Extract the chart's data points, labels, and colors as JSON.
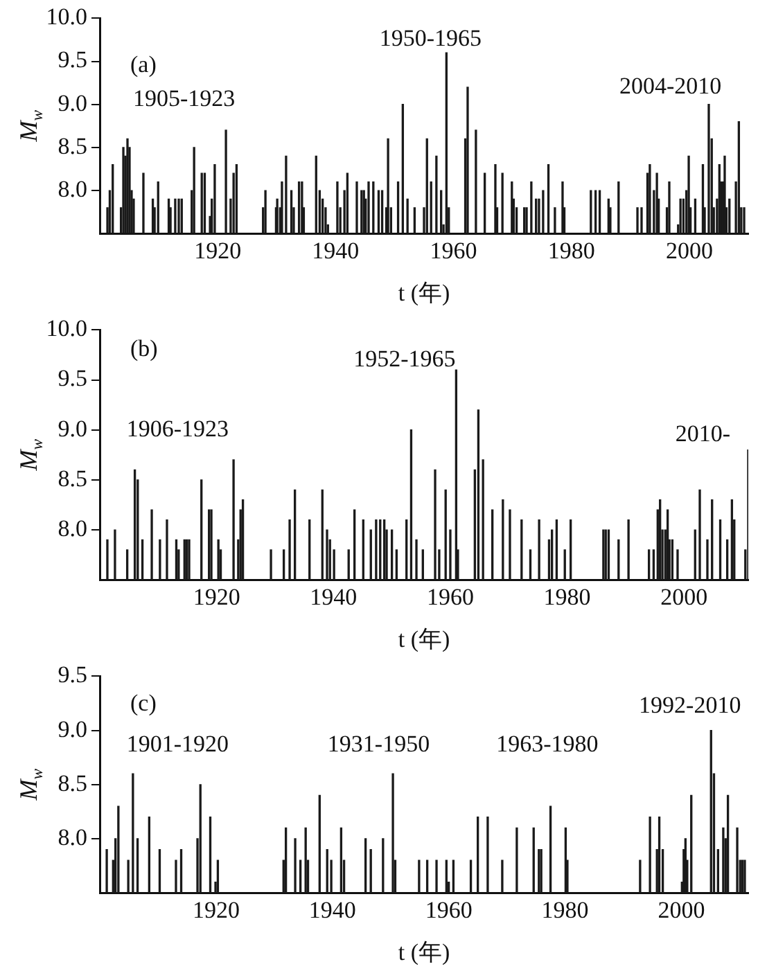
{
  "chart_data": [
    {
      "type": "bar",
      "color": "#1a1a1a",
      "xlabel": "t (年)",
      "ylabel": "M$_{w}$",
      "xlim": [
        1900,
        2010
      ],
      "xticks": [
        1920,
        1940,
        1960,
        1980,
        2000
      ],
      "ylim": [
        7.5,
        10
      ],
      "yticks": [
        {
          "value": 8,
          "label": "8.0"
        },
        {
          "value": 8.5,
          "label": "8.5"
        },
        {
          "value": 9,
          "label": "9.0"
        },
        {
          "value": 9.5,
          "label": "9.5"
        },
        {
          "value": 10,
          "label": "10.0"
        }
      ],
      "annotations": [
        "(a)",
        "1905-1923",
        "1950-1965",
        "2004-2010"
      ],
      "x": [
        1900,
        1901.3,
        1901.7,
        1902.2,
        1903.6,
        1904,
        1904.35,
        1904.7,
        1905.05,
        1905.4,
        1905.75,
        1907.4,
        1909,
        1909.3,
        1909.9,
        1911.7,
        1912,
        1912.8,
        1913.4,
        1913.9,
        1915.6,
        1916,
        1917.3,
        1917.8,
        1918.7,
        1919,
        1919.5,
        1921.4,
        1922.2,
        1922.7,
        1923.2,
        1927.7,
        1928.1,
        1929.9,
        1930.1,
        1930.6,
        1930.9,
        1931.6,
        1932.5,
        1932.9,
        1933.8,
        1934.3,
        1934.6,
        1936.7,
        1937.3,
        1937.8,
        1938.3,
        1938.7,
        1940.3,
        1940.8,
        1941.5,
        1942,
        1943.6,
        1944.4,
        1944.8,
        1945.1,
        1945.6,
        1946.4,
        1947.3,
        1947.9,
        1948.6,
        1948.9,
        1949.4,
        1950.6,
        1951.4,
        1952.2,
        1953.4,
        1955,
        1955.5,
        1956.2,
        1957.1,
        1957.9,
        1958.3,
        1958.8,
        1959.2,
        1962,
        1962.4,
        1963.8,
        1965.3,
        1967.1,
        1967.4,
        1968.3,
        1969.9,
        1970.2,
        1970.7,
        1972,
        1972.4,
        1973.2,
        1974,
        1974.5,
        1975.2,
        1976.1,
        1977.2,
        1978.5,
        1978.8,
        1983.3,
        1984.1,
        1984.8,
        1986.3,
        1986.6,
        1988,
        1991.2,
        1991.9,
        1992.9,
        1993.3,
        1994,
        1994.5,
        1994.8,
        1996.2,
        1996.6,
        1998.1,
        1998.5,
        1999,
        1999.5,
        1999.9,
        2000.2,
        2001,
        2002.3,
        2002.6,
        2003.3,
        2003.8,
        2004.15,
        2004.7,
        2005.1,
        2005.4,
        2005.7,
        2006,
        2006.3,
        2006.8,
        2007.9,
        2008.4,
        2008.8,
        2009.3
      ],
      "values": [
        7.9,
        7.8,
        8,
        8.3,
        7.8,
        8.5,
        8.4,
        8.6,
        8.5,
        8,
        7.9,
        8.2,
        7.9,
        7.8,
        8.1,
        7.9,
        7.8,
        7.9,
        7.9,
        7.9,
        8,
        8.5,
        8.2,
        8.2,
        7.7,
        7.9,
        8.3,
        8.7,
        7.9,
        8.2,
        8.3,
        7.8,
        8,
        7.8,
        7.9,
        7.8,
        8.1,
        8.4,
        8,
        7.8,
        8.1,
        8.1,
        7.8,
        8.4,
        8,
        7.9,
        7.8,
        7.6,
        8.1,
        7.8,
        8,
        8.2,
        8.1,
        8,
        8,
        7.9,
        8.1,
        8.1,
        8,
        8,
        7.8,
        8.6,
        7.8,
        8.1,
        9,
        7.9,
        7.8,
        7.8,
        8.6,
        8.1,
        8.4,
        8,
        7.6,
        9.6,
        7.8,
        8.6,
        9.2,
        8.7,
        8.2,
        8.3,
        7.8,
        8.2,
        8.1,
        7.9,
        7.8,
        7.8,
        7.8,
        8.1,
        7.9,
        7.9,
        8,
        8.3,
        7.8,
        8.1,
        7.8,
        8,
        8,
        8,
        7.9,
        7.8,
        8.1,
        7.8,
        7.8,
        8.2,
        8.3,
        8,
        8.2,
        7.9,
        7.8,
        8.1,
        7.6,
        7.9,
        7.9,
        8,
        8.4,
        7.8,
        7.9,
        8.3,
        7.8,
        9,
        8.6,
        7.8,
        7.9,
        8.3,
        8.1,
        8.1,
        8.4,
        7.8,
        7.9,
        8.1,
        8.8,
        7.8,
        7.8
      ]
    },
    {
      "type": "bar",
      "color": "#1a1a1a",
      "xlabel": "t (年)",
      "ylabel": "M$_{w}$",
      "xlim": [
        1900,
        2011
      ],
      "xticks": [
        1920,
        1940,
        1960,
        1980,
        2000
      ],
      "ylim": [
        7.5,
        10
      ],
      "yticks": [
        {
          "value": 8,
          "label": "8.0"
        },
        {
          "value": 8.5,
          "label": "8.5"
        },
        {
          "value": 9,
          "label": "9.0"
        },
        {
          "value": 9.5,
          "label": "9.5"
        },
        {
          "value": 10,
          "label": "10.0"
        }
      ],
      "annotations": [
        "(b)",
        "1906-1923",
        "1952-1965",
        "2010-"
      ],
      "x": [
        1901.3,
        1902.6,
        1904.7,
        1906,
        1906.5,
        1907.3,
        1908.9,
        1910.3,
        1911.5,
        1913.1,
        1913.5,
        1914.5,
        1914.9,
        1915.3,
        1917.4,
        1918.7,
        1919.1,
        1920.3,
        1920.7,
        1922.9,
        1923.7,
        1924.1,
        1924.5,
        1929.3,
        1931.5,
        1932.5,
        1933.4,
        1935.9,
        1938.1,
        1938.9,
        1939.4,
        1940.1,
        1942.6,
        1943.6,
        1945.1,
        1946.4,
        1947.3,
        1948,
        1948.7,
        1949.1,
        1950,
        1950.8,
        1952.5,
        1953.3,
        1954.2,
        1955.3,
        1957.4,
        1958.1,
        1959.2,
        1960,
        1961,
        1961.3,
        1964.2,
        1964.8,
        1965.6,
        1967.2,
        1969,
        1970.2,
        1972.2,
        1973.7,
        1975.2,
        1976.9,
        1977.4,
        1978.2,
        1979.6,
        1980.6,
        1986.2,
        1986.6,
        1987.1,
        1988.8,
        1990.5,
        1994,
        1994.8,
        1995.5,
        1995.9,
        1996.3,
        1996.8,
        1997.2,
        1997.5,
        1998,
        1998.9,
        2001.9,
        2002.7,
        2004,
        2004.8,
        2006.2,
        2007.4,
        2008.2,
        2008.6,
        2010.5,
        2011
      ],
      "values": [
        7.9,
        8,
        7.8,
        8.6,
        8.5,
        7.9,
        8.2,
        7.9,
        8.1,
        7.9,
        7.8,
        7.9,
        7.9,
        7.9,
        8.5,
        8.2,
        8.2,
        7.9,
        7.8,
        8.7,
        7.9,
        8.2,
        8.3,
        7.8,
        7.8,
        8.1,
        8.4,
        8.1,
        8.4,
        8,
        7.9,
        7.8,
        7.8,
        8.2,
        8.1,
        8,
        8.1,
        8.1,
        8.1,
        8,
        8,
        7.8,
        8.1,
        9,
        7.9,
        7.8,
        8.6,
        7.8,
        8.4,
        8,
        9.6,
        7.8,
        8.6,
        9.2,
        8.7,
        8.2,
        8.3,
        8.2,
        8.1,
        7.8,
        8.1,
        7.9,
        8,
        8.1,
        7.8,
        8.1,
        8,
        8,
        8,
        7.9,
        8.1,
        7.8,
        7.8,
        8.2,
        8.3,
        8,
        8,
        8.2,
        7.9,
        7.9,
        7.8,
        8,
        8.4,
        7.9,
        8.3,
        8.1,
        7.9,
        8.3,
        8.1,
        7.8,
        8.8
      ]
    },
    {
      "type": "bar",
      "color": "#1a1a1a",
      "xlabel": "t (年)",
      "ylabel": "M$_{w}$",
      "xlim": [
        1900,
        2011.5
      ],
      "xticks": [
        1920,
        1940,
        1960,
        1980,
        2000
      ],
      "ylim": [
        7.5,
        9.5
      ],
      "yticks": [
        {
          "value": 8,
          "label": "8.0"
        },
        {
          "value": 8.5,
          "label": "8.5"
        },
        {
          "value": 9,
          "label": "9.0"
        },
        {
          "value": 9.5,
          "label": "9.5"
        }
      ],
      "annotations": [
        "(c)",
        "1901-1920",
        "1931-1950",
        "1963-1980",
        "1992-2010"
      ],
      "x": [
        1901.2,
        1902.3,
        1902.7,
        1903.2,
        1904.9,
        1905.7,
        1906.5,
        1908.5,
        1910.3,
        1913.1,
        1914,
        1916.8,
        1917.3,
        1919,
        1919.9,
        1920.3,
        1931.6,
        1932,
        1933.6,
        1934.5,
        1935.4,
        1935.8,
        1937.8,
        1939.1,
        1939.8,
        1941.5,
        1942,
        1945.7,
        1946.6,
        1948.7,
        1950.4,
        1950.8,
        1954.9,
        1956.3,
        1957.9,
        1959.6,
        1960,
        1960.8,
        1963.8,
        1965,
        1966.7,
        1969.2,
        1971.7,
        1974.6,
        1975.5,
        1975.9,
        1977.5,
        1980.1,
        1980.4,
        1992.9,
        1994.6,
        1995.8,
        1996.2,
        1996.8,
        2000.1,
        2000.4,
        2000.7,
        2001,
        2001.7,
        2005.1,
        2005.6,
        2006.3,
        2007.2,
        2007.6,
        2008,
        2009.6,
        2010.1,
        2010.5,
        2010.9
      ],
      "values": [
        7.9,
        7.8,
        8,
        8.3,
        7.8,
        8.6,
        8,
        8.2,
        7.9,
        7.8,
        7.9,
        8,
        8.5,
        8.2,
        7.6,
        7.8,
        7.8,
        8.1,
        8,
        7.8,
        8.1,
        7.8,
        8.4,
        7.9,
        7.8,
        8.1,
        7.8,
        8,
        7.9,
        8,
        8.6,
        7.8,
        7.8,
        7.8,
        7.8,
        7.8,
        7.6,
        7.8,
        7.8,
        8.2,
        8.2,
        7.8,
        8.1,
        8.1,
        7.9,
        7.9,
        8.3,
        8.1,
        7.8,
        7.8,
        8.2,
        7.9,
        8.2,
        7.9,
        7.6,
        7.9,
        8,
        7.8,
        8.4,
        9,
        8.6,
        7.9,
        8.1,
        8,
        8.4,
        8.1,
        7.8,
        7.8,
        7.8
      ]
    }
  ]
}
